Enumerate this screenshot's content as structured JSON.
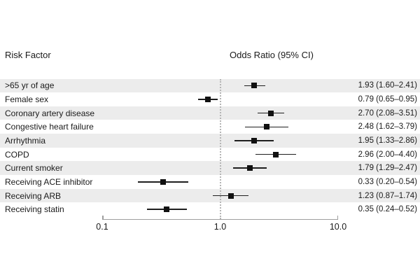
{
  "header": {
    "risk_factor": "Risk Factor",
    "odds_ratio": "Odds Ratio (95% CI)"
  },
  "chart_data": {
    "type": "forest",
    "scale": "log10",
    "xlim": [
      0.1,
      10.0
    ],
    "reference_line": 1.0,
    "grid": false,
    "ticks": [
      {
        "value": 0.1,
        "label": "0.1"
      },
      {
        "value": 1.0,
        "label": "1.0"
      },
      {
        "value": 10.0,
        "label": "10.0"
      }
    ],
    "rows": [
      {
        "label": ">65 yr of age",
        "or": 1.93,
        "ci_low": 1.6,
        "ci_high": 2.41,
        "display": "1.93 (1.60–2.41)"
      },
      {
        "label": "Female sex",
        "or": 0.79,
        "ci_low": 0.65,
        "ci_high": 0.95,
        "display": "0.79 (0.65–0.95)"
      },
      {
        "label": "Coronary artery disease",
        "or": 2.7,
        "ci_low": 2.08,
        "ci_high": 3.51,
        "display": "2.70 (2.08–3.51)"
      },
      {
        "label": "Congestive heart failure",
        "or": 2.48,
        "ci_low": 1.62,
        "ci_high": 3.79,
        "display": "2.48 (1.62–3.79)"
      },
      {
        "label": "Arrhythmia",
        "or": 1.95,
        "ci_low": 1.33,
        "ci_high": 2.86,
        "display": "1.95 (1.33–2.86)"
      },
      {
        "label": "COPD",
        "or": 2.96,
        "ci_low": 2.0,
        "ci_high": 4.4,
        "display": "2.96 (2.00–4.40)"
      },
      {
        "label": "Current smoker",
        "or": 1.79,
        "ci_low": 1.29,
        "ci_high": 2.47,
        "display": "1.79 (1.29–2.47)"
      },
      {
        "label": "Receiving ACE inhibitor",
        "or": 0.33,
        "ci_low": 0.2,
        "ci_high": 0.54,
        "display": "0.33 (0.20–0.54)"
      },
      {
        "label": "Receiving ARB",
        "or": 1.23,
        "ci_low": 0.87,
        "ci_high": 1.74,
        "display": "1.23 (0.87–1.74)"
      },
      {
        "label": "Receiving statin",
        "or": 0.35,
        "ci_low": 0.24,
        "ci_high": 0.52,
        "display": "0.35 (0.24–0.52)"
      }
    ]
  },
  "colors": {
    "band": "#ececec",
    "text": "#1a1a1a",
    "marker": "#111111",
    "ci_line": "#1f1f1f",
    "axis": "#9e9e9e",
    "reference": "#b5b5b5",
    "background": "#ffffff"
  }
}
